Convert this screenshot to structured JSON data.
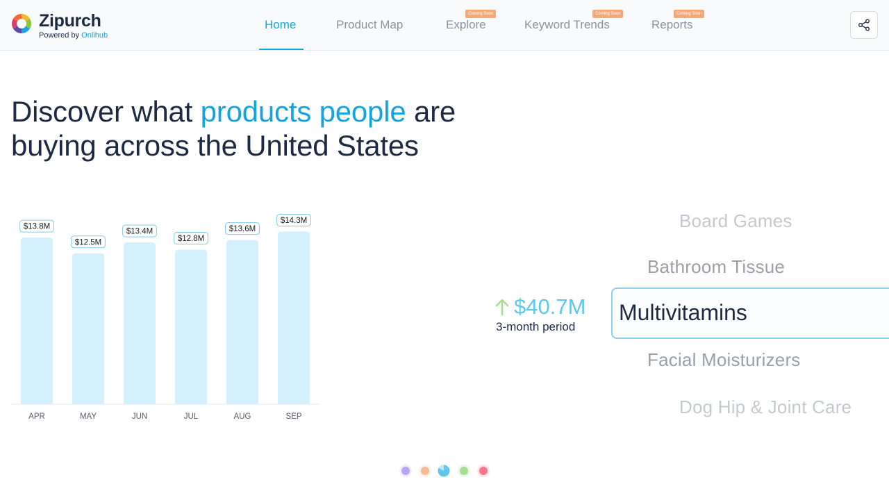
{
  "header": {
    "brand_name": "Zipurch",
    "powered_by_prefix": "Powered by ",
    "powered_by_name": "Onlihub",
    "nav": [
      {
        "label": "Home",
        "active": true,
        "badge": ""
      },
      {
        "label": "Product Map",
        "active": false,
        "badge": ""
      },
      {
        "label": "Explore",
        "active": false,
        "badge": "Coming Soon"
      },
      {
        "label": "Keyword Trends",
        "active": false,
        "badge": "Coming Soon"
      },
      {
        "label": "Reports",
        "active": false,
        "badge": "Coming Soon"
      }
    ],
    "share_icon": "share-icon"
  },
  "hero": {
    "headline_part1": "Discover what ",
    "headline_highlight": "products people",
    "headline_part2": " are buying across the United States"
  },
  "chart_data": {
    "type": "bar",
    "categories": [
      "APR",
      "MAY",
      "JUN",
      "JUL",
      "AUG",
      "SEP"
    ],
    "values": [
      13.8,
      12.5,
      13.4,
      12.8,
      13.6,
      14.3
    ],
    "data_labels": [
      "$13.8M",
      "$12.5M",
      "$13.4M",
      "$12.8M",
      "$13.6M",
      "$14.3M"
    ],
    "unit": "$M",
    "ylim": [
      0,
      14.5
    ],
    "grid": false,
    "bar_color": "#d3f0fc",
    "title": "",
    "xlabel": "",
    "ylabel": ""
  },
  "carousel": {
    "categories": [
      "Board Games",
      "Bathroom Tissue",
      "Multivitamins",
      "Facial Moisturizers",
      "Dog Hip & Joint Care"
    ],
    "selected": "Multivitamins",
    "amount": "$40.7M",
    "amount_label": "3-month period",
    "trend": "up"
  },
  "pagination": {
    "dots": [
      "#b9a4f2",
      "#f7bc94",
      "#5ec7ee",
      "#a7de8f",
      "#f7788a"
    ],
    "active_index": 2
  },
  "colors": {
    "accent": "#14a5e0",
    "text": "#1e2a44",
    "nav_inactive": "#8c929c",
    "badge": "#f6a978",
    "arrow_green": "#a7de8f"
  }
}
